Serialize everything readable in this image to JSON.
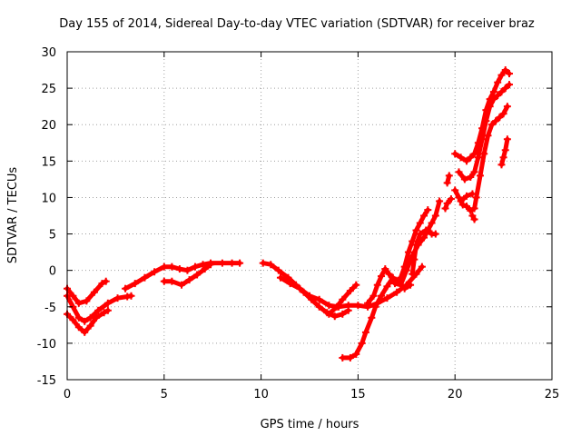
{
  "chart_data": {
    "type": "scatter",
    "title": "Day 155 of 2014, Sidereal Day-to-day VTEC variation (SDTVAR) for receiver braz",
    "xlabel": "GPS time / hours",
    "ylabel": "SDTVAR / TECUs",
    "xlim": [
      0,
      25
    ],
    "ylim": [
      -15,
      30
    ],
    "xticks": [
      0,
      5,
      10,
      15,
      20,
      25
    ],
    "yticks": [
      -15,
      -10,
      -5,
      0,
      5,
      10,
      15,
      20,
      25,
      30
    ],
    "grid": true,
    "color": "#ff0000",
    "series": [
      {
        "points": [
          [
            0,
            -2.5
          ],
          [
            0.3,
            -3.5
          ],
          [
            0.6,
            -4.5
          ],
          [
            1.0,
            -4.2
          ],
          [
            1.4,
            -3.0
          ],
          [
            1.8,
            -1.8
          ],
          [
            2.0,
            -1.5
          ]
        ]
      },
      {
        "points": [
          [
            0,
            -3.5
          ],
          [
            0.3,
            -5.0
          ],
          [
            0.6,
            -6.5
          ],
          [
            0.9,
            -7.0
          ],
          [
            1.2,
            -6.5
          ],
          [
            1.6,
            -5.5
          ],
          [
            2.1,
            -4.5
          ],
          [
            2.6,
            -3.8
          ],
          [
            3.1,
            -3.6
          ],
          [
            3.3,
            -3.5
          ]
        ]
      },
      {
        "points": [
          [
            0,
            -6.0
          ],
          [
            0.3,
            -6.8
          ],
          [
            0.6,
            -7.8
          ],
          [
            0.9,
            -8.5
          ],
          [
            1.2,
            -7.6
          ],
          [
            1.5,
            -6.5
          ],
          [
            1.9,
            -5.8
          ],
          [
            2.1,
            -5.5
          ]
        ]
      },
      {
        "points": [
          [
            3.0,
            -2.5
          ],
          [
            3.5,
            -1.8
          ],
          [
            4.0,
            -1.0
          ],
          [
            4.5,
            -0.2
          ],
          [
            5.0,
            0.5
          ],
          [
            5.4,
            0.5
          ],
          [
            5.8,
            0.2
          ],
          [
            6.2,
            0.0
          ],
          [
            6.6,
            0.5
          ],
          [
            7.0,
            0.8
          ],
          [
            7.4,
            1.0
          ],
          [
            8.0,
            1.0
          ],
          [
            8.5,
            1.0
          ],
          [
            8.9,
            1.0
          ]
        ]
      },
      {
        "points": [
          [
            5.0,
            -1.5
          ],
          [
            5.4,
            -1.5
          ],
          [
            5.9,
            -2.0
          ],
          [
            6.3,
            -1.3
          ],
          [
            6.7,
            -0.6
          ],
          [
            7.1,
            0.2
          ],
          [
            7.4,
            0.8
          ]
        ]
      },
      {
        "points": [
          [
            10.1,
            1.0
          ],
          [
            10.5,
            0.8
          ],
          [
            10.9,
            0.0
          ],
          [
            11.4,
            -1.0
          ],
          [
            11.8,
            -2.0
          ],
          [
            12.2,
            -3.0
          ],
          [
            12.6,
            -4.0
          ],
          [
            13.0,
            -5.0
          ],
          [
            13.4,
            -5.8
          ],
          [
            13.8,
            -6.3
          ],
          [
            14.2,
            -6.0
          ],
          [
            14.5,
            -5.5
          ]
        ]
      },
      {
        "points": [
          [
            11.0,
            -1.0
          ],
          [
            11.5,
            -1.8
          ],
          [
            12.0,
            -2.5
          ],
          [
            12.5,
            -3.5
          ],
          [
            13.0,
            -4.0
          ],
          [
            13.5,
            -4.8
          ],
          [
            14.0,
            -5.0
          ],
          [
            14.5,
            -4.8
          ],
          [
            15.0,
            -4.8
          ],
          [
            15.5,
            -5.0
          ],
          [
            16.0,
            -4.5
          ],
          [
            16.5,
            -3.8
          ],
          [
            17.0,
            -3.0
          ],
          [
            17.5,
            -2.0
          ],
          [
            18.0,
            -0.5
          ],
          [
            18.3,
            0.5
          ]
        ]
      },
      {
        "points": [
          [
            13.5,
            -6.0
          ],
          [
            13.9,
            -5.0
          ],
          [
            14.2,
            -4.0
          ],
          [
            14.6,
            -2.8
          ],
          [
            14.9,
            -2.0
          ]
        ]
      },
      {
        "points": [
          [
            14.2,
            -12.0
          ],
          [
            14.6,
            -12.0
          ],
          [
            14.9,
            -11.5
          ],
          [
            15.2,
            -10.0
          ],
          [
            15.4,
            -8.5
          ],
          [
            15.7,
            -6.5
          ],
          [
            15.9,
            -5.0
          ],
          [
            16.2,
            -3.5
          ],
          [
            16.5,
            -2.2
          ],
          [
            16.8,
            -1.0
          ],
          [
            17.1,
            -1.5
          ],
          [
            17.4,
            -2.5
          ],
          [
            17.7,
            -2.0
          ]
        ]
      },
      {
        "points": [
          [
            15.5,
            -4.5
          ],
          [
            15.8,
            -3.5
          ],
          [
            16.0,
            -2.0
          ],
          [
            16.2,
            -0.8
          ],
          [
            16.4,
            0.2
          ],
          [
            16.6,
            -0.5
          ],
          [
            16.9,
            -1.8
          ],
          [
            17.2,
            -2.0
          ],
          [
            17.5,
            0.0
          ],
          [
            17.8,
            2.0
          ],
          [
            18.1,
            3.5
          ],
          [
            18.4,
            4.5
          ],
          [
            18.6,
            5.5
          ],
          [
            18.8,
            6.5
          ],
          [
            19.0,
            7.5
          ],
          [
            19.2,
            9.5
          ]
        ]
      },
      {
        "points": [
          [
            17.2,
            -1.0
          ],
          [
            17.4,
            0.5
          ],
          [
            17.6,
            2.5
          ],
          [
            17.8,
            4.0
          ],
          [
            18.0,
            5.5
          ],
          [
            18.2,
            6.5
          ],
          [
            18.4,
            7.5
          ],
          [
            18.6,
            8.3
          ]
        ]
      },
      {
        "points": [
          [
            17.8,
            -0.5
          ],
          [
            17.9,
            1.5
          ],
          [
            18.0,
            3.5
          ],
          [
            18.2,
            5.0
          ],
          [
            18.5,
            5.5
          ],
          [
            18.8,
            5.0
          ],
          [
            19.0,
            5.0
          ]
        ]
      },
      {
        "points": [
          [
            19.5,
            8.5
          ],
          [
            19.6,
            9.2
          ],
          [
            19.8,
            9.8
          ]
        ]
      },
      {
        "points": [
          [
            20.0,
            16.0
          ],
          [
            20.3,
            15.5
          ],
          [
            20.6,
            15.0
          ],
          [
            20.8,
            15.5
          ],
          [
            21.0,
            16.0
          ],
          [
            21.2,
            17.5
          ],
          [
            21.4,
            19.5
          ],
          [
            21.6,
            22.0
          ],
          [
            21.8,
            23.5
          ],
          [
            22.0,
            24.5
          ],
          [
            22.2,
            25.8
          ],
          [
            22.4,
            26.8
          ],
          [
            22.6,
            27.5
          ],
          [
            22.8,
            27.0
          ]
        ]
      },
      {
        "points": [
          [
            20.2,
            13.5
          ],
          [
            20.5,
            12.5
          ],
          [
            20.8,
            12.8
          ],
          [
            21.0,
            13.5
          ],
          [
            21.2,
            15.5
          ],
          [
            21.4,
            18.0
          ],
          [
            21.6,
            20.5
          ],
          [
            21.8,
            22.5
          ],
          [
            22.0,
            23.5
          ],
          [
            22.2,
            24.0
          ],
          [
            22.4,
            24.5
          ],
          [
            22.6,
            25.0
          ],
          [
            22.8,
            25.5
          ]
        ]
      },
      {
        "points": [
          [
            20.0,
            11.0
          ],
          [
            20.2,
            10.0
          ],
          [
            20.4,
            9.0
          ],
          [
            20.6,
            8.8
          ],
          [
            20.8,
            8.2
          ],
          [
            21.0,
            8.5
          ],
          [
            21.1,
            10.0
          ],
          [
            21.3,
            13.0
          ],
          [
            21.5,
            16.0
          ],
          [
            21.7,
            18.5
          ],
          [
            21.9,
            20.0
          ],
          [
            22.1,
            20.5
          ],
          [
            22.3,
            21.0
          ],
          [
            22.5,
            21.5
          ],
          [
            22.7,
            22.5
          ]
        ]
      },
      {
        "points": [
          [
            20.3,
            9.5
          ],
          [
            20.6,
            10.2
          ],
          [
            20.9,
            10.5
          ]
        ]
      },
      {
        "points": [
          [
            22.4,
            14.5
          ],
          [
            22.5,
            15.5
          ],
          [
            22.6,
            16.5
          ],
          [
            22.7,
            18.0
          ]
        ]
      },
      {
        "points": [
          [
            19.6,
            12.0
          ],
          [
            19.7,
            13.0
          ]
        ]
      },
      {
        "points": [
          [
            20.9,
            7.5
          ],
          [
            21.0,
            7.0
          ]
        ]
      }
    ]
  }
}
